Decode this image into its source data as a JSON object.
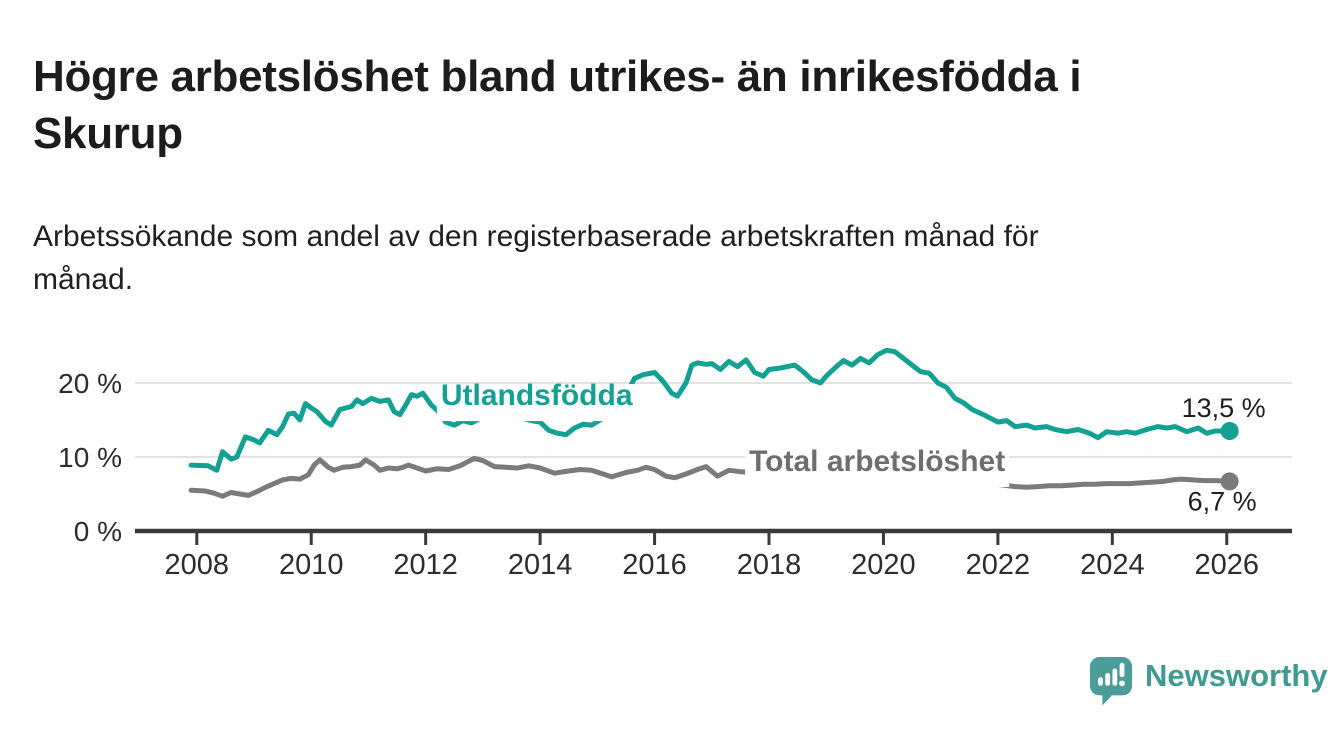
{
  "header": {
    "title_line1": "Högre arbetslöshet bland utrikes- än inrikesfödda i",
    "title_line2": "Skurup",
    "subtitle_line1": "Arbetssökande som andel av den registerbaserade arbetskraften månad för",
    "subtitle_line2": "månad."
  },
  "footer": {
    "brand": "Newsworthy",
    "logo_icon": "newsworthy-speech-bubble-bar-chart-icon",
    "brand_color": "#3f9a93",
    "icon_color": "#4a9e97"
  },
  "colors": {
    "accent_teal": "#12a193",
    "series_gray": "#7b7b7b",
    "axis": "#3a3a3a",
    "grid": "#e1e1e1",
    "text_dark": "#1c1c1c"
  },
  "chart_data": {
    "type": "line",
    "title": "Högre arbetslöshet bland utrikes- än inrikesfödda i Skurup",
    "subtitle": "Arbetssökande som andel av den registerbaserade arbetskraften månad för månad.",
    "unit": "%",
    "xlim": [
      2006.92,
      2027.14
    ],
    "ylim": [
      0,
      27
    ],
    "grid": "horizontal",
    "legend_position": "inline-labels",
    "x_ticks": [
      {
        "value": 2008,
        "label": "2008"
      },
      {
        "value": 2010,
        "label": "2010"
      },
      {
        "value": 2012,
        "label": "2012"
      },
      {
        "value": 2014,
        "label": "2014"
      },
      {
        "value": 2016,
        "label": "2016"
      },
      {
        "value": 2018,
        "label": "2018"
      },
      {
        "value": 2020,
        "label": "2020"
      },
      {
        "value": 2022,
        "label": "2022"
      },
      {
        "value": 2024,
        "label": "2024"
      },
      {
        "value": 2026,
        "label": "2026"
      }
    ],
    "y_ticks": [
      {
        "value": 20,
        "label": "20 %"
      },
      {
        "value": 10,
        "label": "10 %"
      },
      {
        "value": 0,
        "label": "0 %"
      }
    ],
    "series": [
      {
        "name": "Utlandsfödda",
        "color": "#12a193",
        "end_value": 13.5,
        "line_label": {
          "text": "Utlandsfödda",
          "x": 2013.94,
          "y": 17.0
        },
        "end_label": {
          "text": "13,5 %",
          "dx": 36,
          "dy": -14
        },
        "points": [
          [
            2007.9,
            8.9
          ],
          [
            2008.2,
            8.8
          ],
          [
            2008.35,
            8.2
          ],
          [
            2008.45,
            10.7
          ],
          [
            2008.6,
            9.7
          ],
          [
            2008.7,
            10.0
          ],
          [
            2008.85,
            12.7
          ],
          [
            2009.0,
            12.3
          ],
          [
            2009.1,
            11.9
          ],
          [
            2009.25,
            13.6
          ],
          [
            2009.4,
            13.0
          ],
          [
            2009.5,
            14.1
          ],
          [
            2009.6,
            15.8
          ],
          [
            2009.7,
            15.9
          ],
          [
            2009.8,
            15.0
          ],
          [
            2009.9,
            17.2
          ],
          [
            2010.0,
            16.6
          ],
          [
            2010.1,
            16.1
          ],
          [
            2010.25,
            14.8
          ],
          [
            2010.35,
            14.3
          ],
          [
            2010.5,
            16.4
          ],
          [
            2010.6,
            16.6
          ],
          [
            2010.7,
            16.8
          ],
          [
            2010.8,
            17.7
          ],
          [
            2010.9,
            17.2
          ],
          [
            2011.05,
            17.9
          ],
          [
            2011.2,
            17.5
          ],
          [
            2011.35,
            17.7
          ],
          [
            2011.45,
            16.1
          ],
          [
            2011.55,
            15.7
          ],
          [
            2011.65,
            17.0
          ],
          [
            2011.75,
            18.4
          ],
          [
            2011.85,
            18.2
          ],
          [
            2011.95,
            18.6
          ],
          [
            2012.1,
            17.0
          ],
          [
            2012.2,
            16.3
          ],
          [
            2012.35,
            14.7
          ],
          [
            2012.5,
            14.3
          ],
          [
            2012.65,
            14.9
          ],
          [
            2012.8,
            14.6
          ],
          [
            2013.0,
            15.4
          ],
          [
            2013.15,
            16.1
          ],
          [
            2013.3,
            15.9
          ],
          [
            2013.5,
            15.6
          ],
          [
            2013.7,
            15.2
          ],
          [
            2013.85,
            14.9
          ],
          [
            2014.0,
            14.7
          ],
          [
            2014.15,
            13.6
          ],
          [
            2014.3,
            13.2
          ],
          [
            2014.45,
            13.0
          ],
          [
            2014.6,
            13.9
          ],
          [
            2014.75,
            14.4
          ],
          [
            2014.9,
            14.3
          ],
          [
            2015.05,
            15.0
          ],
          [
            2015.2,
            15.6
          ],
          [
            2015.35,
            16.5
          ],
          [
            2015.5,
            18.3
          ],
          [
            2015.65,
            20.6
          ],
          [
            2015.8,
            21.1
          ],
          [
            2016.0,
            21.4
          ],
          [
            2016.15,
            20.2
          ],
          [
            2016.3,
            18.6
          ],
          [
            2016.4,
            18.2
          ],
          [
            2016.55,
            20.0
          ],
          [
            2016.65,
            22.4
          ],
          [
            2016.75,
            22.7
          ],
          [
            2016.9,
            22.5
          ],
          [
            2017.0,
            22.6
          ],
          [
            2017.15,
            21.8
          ],
          [
            2017.3,
            22.9
          ],
          [
            2017.45,
            22.2
          ],
          [
            2017.6,
            23.1
          ],
          [
            2017.75,
            21.4
          ],
          [
            2017.9,
            20.9
          ],
          [
            2018.0,
            21.8
          ],
          [
            2018.2,
            22.0
          ],
          [
            2018.45,
            22.4
          ],
          [
            2018.6,
            21.5
          ],
          [
            2018.75,
            20.4
          ],
          [
            2018.9,
            20.0
          ],
          [
            2019.0,
            20.9
          ],
          [
            2019.15,
            22.0
          ],
          [
            2019.3,
            23.0
          ],
          [
            2019.45,
            22.4
          ],
          [
            2019.6,
            23.3
          ],
          [
            2019.75,
            22.7
          ],
          [
            2019.9,
            23.8
          ],
          [
            2020.05,
            24.4
          ],
          [
            2020.2,
            24.2
          ],
          [
            2020.35,
            23.3
          ],
          [
            2020.5,
            22.4
          ],
          [
            2020.65,
            21.5
          ],
          [
            2020.8,
            21.3
          ],
          [
            2020.95,
            20.0
          ],
          [
            2021.1,
            19.4
          ],
          [
            2021.25,
            17.9
          ],
          [
            2021.4,
            17.3
          ],
          [
            2021.55,
            16.4
          ],
          [
            2021.75,
            15.7
          ],
          [
            2021.9,
            15.1
          ],
          [
            2022.0,
            14.7
          ],
          [
            2022.15,
            14.9
          ],
          [
            2022.3,
            14.1
          ],
          [
            2022.5,
            14.3
          ],
          [
            2022.65,
            13.9
          ],
          [
            2022.85,
            14.1
          ],
          [
            2023.0,
            13.7
          ],
          [
            2023.2,
            13.4
          ],
          [
            2023.4,
            13.7
          ],
          [
            2023.6,
            13.2
          ],
          [
            2023.75,
            12.6
          ],
          [
            2023.9,
            13.4
          ],
          [
            2024.1,
            13.2
          ],
          [
            2024.25,
            13.4
          ],
          [
            2024.4,
            13.2
          ],
          [
            2024.6,
            13.7
          ],
          [
            2024.8,
            14.1
          ],
          [
            2024.95,
            13.9
          ],
          [
            2025.1,
            14.1
          ],
          [
            2025.3,
            13.4
          ],
          [
            2025.5,
            13.9
          ],
          [
            2025.65,
            13.2
          ],
          [
            2025.8,
            13.5
          ],
          [
            2026.05,
            13.5
          ]
        ]
      },
      {
        "name": "Total arbetslöshet",
        "color": "#7b7b7b",
        "label_color": "#6e6e6e",
        "end_value": 6.7,
        "line_label": {
          "text": "Total arbetslöshet",
          "x": 2019.89,
          "y": 8.1
        },
        "end_label": {
          "text": "6,7 %",
          "dx": 27,
          "dy": 29
        },
        "points": [
          [
            2007.9,
            5.5
          ],
          [
            2008.15,
            5.4
          ],
          [
            2008.3,
            5.1
          ],
          [
            2008.45,
            4.7
          ],
          [
            2008.6,
            5.2
          ],
          [
            2008.75,
            5.0
          ],
          [
            2008.9,
            4.8
          ],
          [
            2009.05,
            5.3
          ],
          [
            2009.2,
            5.9
          ],
          [
            2009.35,
            6.4
          ],
          [
            2009.5,
            6.9
          ],
          [
            2009.65,
            7.1
          ],
          [
            2009.8,
            7.0
          ],
          [
            2009.95,
            7.6
          ],
          [
            2010.05,
            8.9
          ],
          [
            2010.15,
            9.6
          ],
          [
            2010.3,
            8.6
          ],
          [
            2010.4,
            8.2
          ],
          [
            2010.55,
            8.6
          ],
          [
            2010.7,
            8.7
          ],
          [
            2010.85,
            8.9
          ],
          [
            2010.95,
            9.6
          ],
          [
            2011.1,
            8.9
          ],
          [
            2011.2,
            8.2
          ],
          [
            2011.35,
            8.5
          ],
          [
            2011.5,
            8.4
          ],
          [
            2011.6,
            8.6
          ],
          [
            2011.7,
            8.9
          ],
          [
            2011.85,
            8.5
          ],
          [
            2012.0,
            8.1
          ],
          [
            2012.2,
            8.4
          ],
          [
            2012.4,
            8.3
          ],
          [
            2012.6,
            8.8
          ],
          [
            2012.85,
            9.8
          ],
          [
            2013.0,
            9.5
          ],
          [
            2013.2,
            8.7
          ],
          [
            2013.4,
            8.6
          ],
          [
            2013.6,
            8.5
          ],
          [
            2013.8,
            8.8
          ],
          [
            2014.0,
            8.5
          ],
          [
            2014.25,
            7.8
          ],
          [
            2014.5,
            8.1
          ],
          [
            2014.7,
            8.3
          ],
          [
            2014.9,
            8.2
          ],
          [
            2015.1,
            7.7
          ],
          [
            2015.25,
            7.3
          ],
          [
            2015.5,
            7.9
          ],
          [
            2015.7,
            8.2
          ],
          [
            2015.85,
            8.6
          ],
          [
            2016.0,
            8.3
          ],
          [
            2016.2,
            7.4
          ],
          [
            2016.35,
            7.2
          ],
          [
            2016.55,
            7.7
          ],
          [
            2016.75,
            8.3
          ],
          [
            2016.9,
            8.7
          ],
          [
            2017.1,
            7.4
          ],
          [
            2017.3,
            8.2
          ],
          [
            2017.5,
            8.0
          ],
          [
            2017.75,
            7.9
          ],
          [
            2018.0,
            8.0
          ],
          [
            2018.3,
            8.1
          ],
          [
            2018.6,
            7.9
          ],
          [
            2019.0,
            7.9
          ],
          [
            2019.4,
            7.7
          ],
          [
            2019.8,
            7.8
          ],
          [
            2020.1,
            8.2
          ],
          [
            2020.4,
            8.5
          ],
          [
            2020.7,
            8.2
          ],
          [
            2021.0,
            7.7
          ],
          [
            2021.3,
            7.2
          ],
          [
            2021.6,
            6.8
          ],
          [
            2021.9,
            6.4
          ],
          [
            2022.1,
            6.2
          ],
          [
            2022.3,
            6.0
          ],
          [
            2022.5,
            5.9
          ],
          [
            2022.7,
            6.0
          ],
          [
            2022.9,
            6.1
          ],
          [
            2023.1,
            6.1
          ],
          [
            2023.3,
            6.2
          ],
          [
            2023.5,
            6.3
          ],
          [
            2023.7,
            6.3
          ],
          [
            2023.9,
            6.4
          ],
          [
            2024.1,
            6.4
          ],
          [
            2024.3,
            6.4
          ],
          [
            2024.5,
            6.5
          ],
          [
            2024.7,
            6.6
          ],
          [
            2024.9,
            6.7
          ],
          [
            2025.05,
            6.9
          ],
          [
            2025.2,
            7.0
          ],
          [
            2025.4,
            6.9
          ],
          [
            2025.6,
            6.8
          ],
          [
            2025.8,
            6.8
          ],
          [
            2026.05,
            6.7
          ]
        ]
      }
    ]
  }
}
